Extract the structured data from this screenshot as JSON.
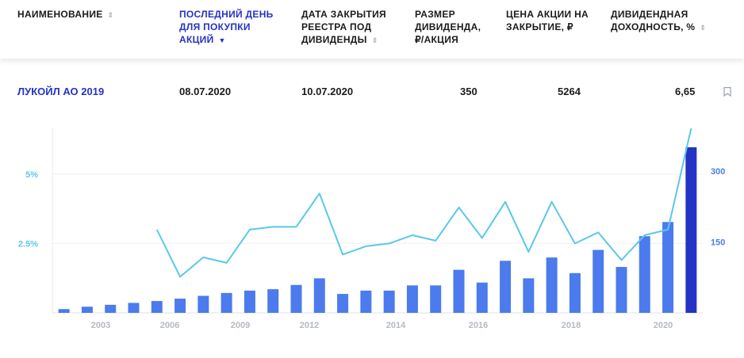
{
  "table": {
    "columns": [
      {
        "label_lines": [
          "НАИМЕНОВАНИЕ"
        ],
        "sort": "both",
        "active": false
      },
      {
        "label_lines": [
          "ПОСЛЕДНИЙ ДЕНЬ",
          "ДЛЯ ПОКУПКИ",
          "АКЦИЙ"
        ],
        "sort": "down",
        "active": true
      },
      {
        "label_lines": [
          "ДАТА ЗАКРЫТИЯ",
          "РЕЕСТРА ПОД",
          "ДИВИДЕНДЫ"
        ],
        "sort": "both",
        "active": false
      },
      {
        "label_lines": [
          "РАЗМЕР",
          "ДИВИДЕНДА,",
          "₽/АКЦИЯ"
        ],
        "sort": "none",
        "active": false
      },
      {
        "label_lines": [
          "ЦЕНА АКЦИИ НА",
          "ЗАКРЫТИЕ, ₽"
        ],
        "sort": "none",
        "active": false
      },
      {
        "label_lines": [
          "ДИВИДЕНДНАЯ",
          "ДОХОДНОСТЬ, %"
        ],
        "sort": "both",
        "active": false
      }
    ],
    "row": {
      "name": "ЛУКОЙЛ АО 2019",
      "last_buy_day": "08.07.2020",
      "record_date": "10.07.2020",
      "dividend": "350",
      "close_price": "5264",
      "yield": "6,65"
    },
    "bookmark_icon": "bookmark-icon"
  },
  "colors": {
    "accent": "#2433c4",
    "bar": "#4b7bec",
    "bar_highlight": "#2433c4",
    "line": "#5bc8e8",
    "left_axis_text": "#5bc8e8",
    "right_axis_text": "#4b7bec",
    "x_axis_text": "#b5b9c2"
  },
  "chart_data": {
    "type": "bar",
    "x_tick_labels": [
      "2003",
      "2006",
      "2009",
      "2012",
      "2014",
      "2016",
      "2018",
      "2020"
    ],
    "series": [
      {
        "axis": "right",
        "kind": "bar",
        "values": [
          8,
          13,
          17,
          21,
          25,
          30,
          36,
          42,
          47,
          50,
          59,
          73,
          40,
          47,
          47,
          58,
          58,
          91,
          64,
          110,
          73,
          117,
          84,
          133,
          97,
          162,
          192,
          350
        ],
        "highlight_last": true
      },
      {
        "axis": "left",
        "kind": "line",
        "values": [
          null,
          null,
          null,
          null,
          3.0,
          1.3,
          2.0,
          1.8,
          3.0,
          3.1,
          3.1,
          4.3,
          2.1,
          2.4,
          2.5,
          2.8,
          2.6,
          3.8,
          2.7,
          4.0,
          2.2,
          4.0,
          2.5,
          2.9,
          1.9,
          2.8,
          3.0,
          6.65
        ]
      }
    ],
    "left_axis": {
      "ticks": [
        2.5,
        5
      ],
      "tick_labels": [
        "2.5%",
        "5%"
      ],
      "range": [
        0,
        6.65
      ]
    },
    "right_axis": {
      "ticks": [
        150,
        300
      ],
      "tick_labels": [
        "150",
        "300"
      ],
      "range": [
        0,
        390
      ]
    },
    "grid": "horizontal",
    "legend": "none"
  }
}
